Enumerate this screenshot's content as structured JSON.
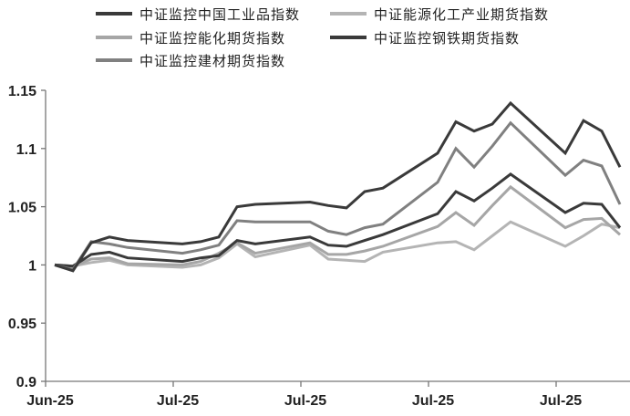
{
  "chart_data": {
    "type": "line",
    "title": "",
    "xlabel": "",
    "ylabel": "",
    "ylim": [
      0.9,
      1.15
    ],
    "yticks": [
      "0.9",
      "0.95",
      "1",
      "1.05",
      "1.1",
      "1.15"
    ],
    "xticks": [
      {
        "date": "2025-06-30",
        "label": "Jun-25"
      },
      {
        "date": "2025-07-07",
        "label": "Jul-25"
      },
      {
        "date": "2025-07-14",
        "label": "Jul-25"
      },
      {
        "date": "2025-07-21",
        "label": "Jul-25"
      },
      {
        "date": "2025-07-28",
        "label": "Jul-25"
      }
    ],
    "grid": false,
    "legend_position": "top",
    "x": [
      "2025-06-30",
      "2025-07-01",
      "2025-07-02",
      "2025-07-03",
      "2025-07-04",
      "2025-07-07",
      "2025-07-08",
      "2025-07-09",
      "2025-07-10",
      "2025-07-11",
      "2025-07-14",
      "2025-07-15",
      "2025-07-16",
      "2025-07-17",
      "2025-07-18",
      "2025-07-21",
      "2025-07-22",
      "2025-07-23",
      "2025-07-24",
      "2025-07-25",
      "2025-07-28",
      "2025-07-29",
      "2025-07-30",
      "2025-07-31"
    ],
    "series": [
      {
        "name": "中证监控中国工业品指数",
        "color": "#3a3a3a",
        "values": [
          1.0,
          0.999,
          1.009,
          1.011,
          1.006,
          1.003,
          1.006,
          1.008,
          1.021,
          1.018,
          1.024,
          1.017,
          1.016,
          1.021,
          1.026,
          1.044,
          1.063,
          1.055,
          1.066,
          1.078,
          1.045,
          1.053,
          1.052,
          1.032
        ]
      },
      {
        "name": "中证能源化工产业期货指数",
        "color": "#b4b4b4",
        "values": [
          1.0,
          0.999,
          1.002,
          1.004,
          1.0,
          0.998,
          1.0,
          1.006,
          1.018,
          1.007,
          1.017,
          1.005,
          1.004,
          1.003,
          1.011,
          1.019,
          1.02,
          1.013,
          1.025,
          1.037,
          1.016,
          1.025,
          1.035,
          1.032
        ]
      },
      {
        "name": "中证监控能化期货指数",
        "color": "#a6a6a6",
        "values": [
          1.0,
          0.999,
          1.005,
          1.006,
          1.001,
          1.0,
          1.003,
          1.01,
          1.019,
          1.01,
          1.019,
          1.009,
          1.009,
          1.012,
          1.016,
          1.033,
          1.045,
          1.034,
          1.051,
          1.067,
          1.032,
          1.039,
          1.04,
          1.026
        ]
      },
      {
        "name": "中证监控钢铁期货指数",
        "color": "#3a3a3a",
        "values": [
          1.0,
          0.995,
          1.019,
          1.024,
          1.021,
          1.018,
          1.02,
          1.024,
          1.05,
          1.052,
          1.054,
          1.051,
          1.049,
          1.063,
          1.066,
          1.096,
          1.123,
          1.115,
          1.121,
          1.139,
          1.096,
          1.124,
          1.115,
          1.084
        ]
      },
      {
        "name": "中证监控建材期货指数",
        "color": "#808080",
        "values": [
          1.0,
          0.996,
          1.02,
          1.018,
          1.015,
          1.01,
          1.013,
          1.017,
          1.038,
          1.037,
          1.037,
          1.029,
          1.026,
          1.032,
          1.035,
          1.071,
          1.1,
          1.084,
          1.102,
          1.122,
          1.077,
          1.09,
          1.085,
          1.052
        ]
      }
    ]
  }
}
